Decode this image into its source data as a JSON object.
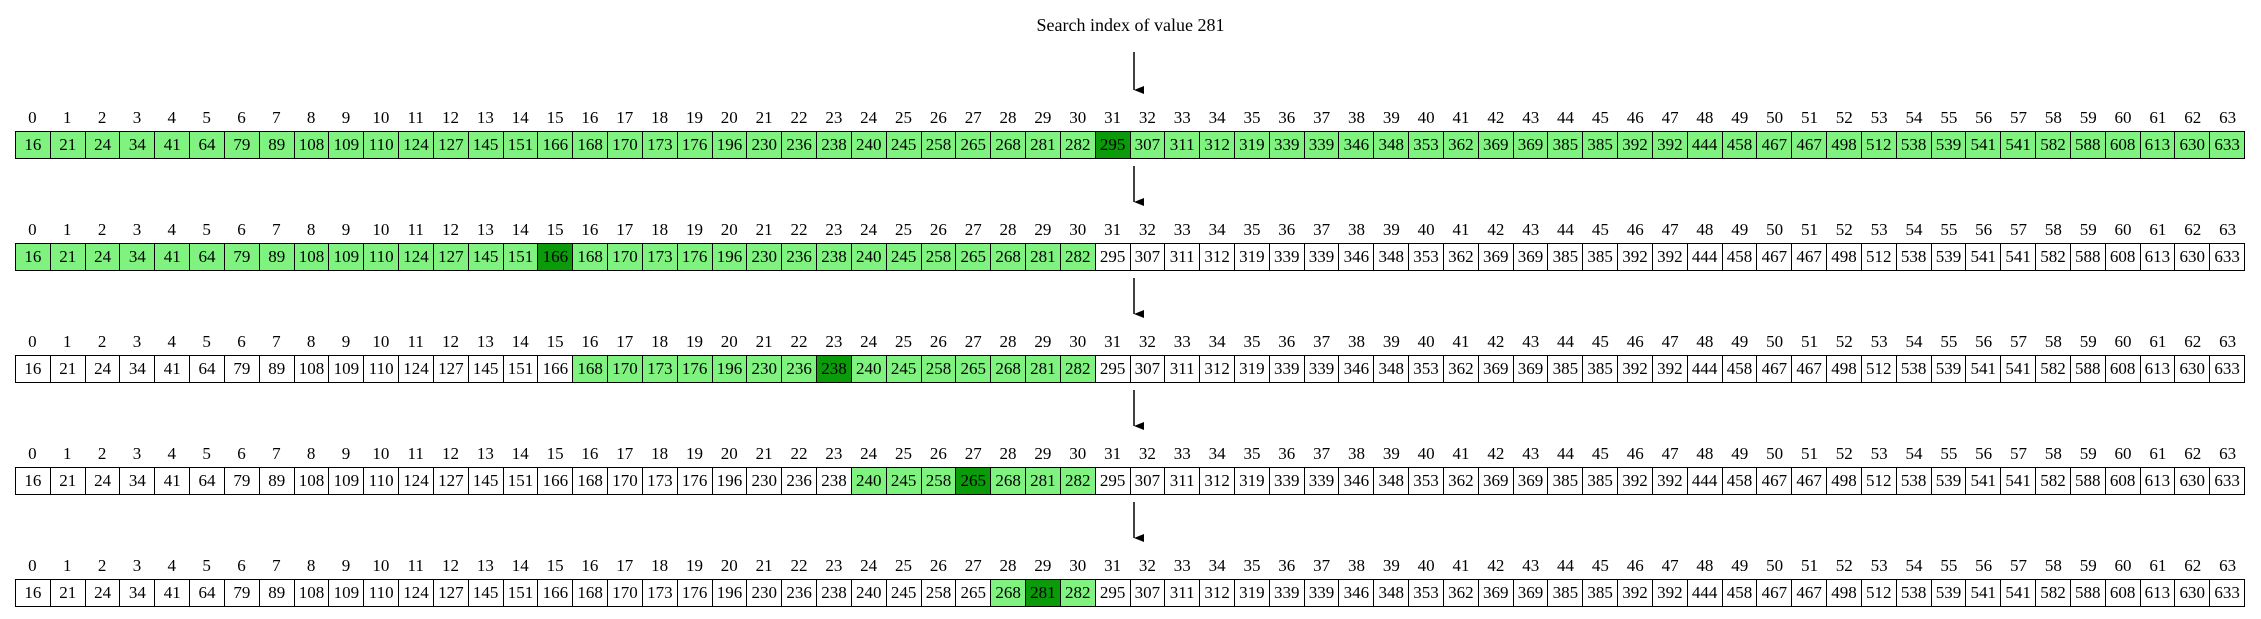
{
  "title": "Search index of value 281",
  "array": [
    16,
    21,
    24,
    34,
    41,
    64,
    79,
    89,
    108,
    109,
    110,
    124,
    127,
    145,
    151,
    166,
    168,
    170,
    173,
    176,
    196,
    230,
    236,
    238,
    240,
    245,
    258,
    265,
    268,
    281,
    282,
    295,
    307,
    311,
    312,
    319,
    339,
    339,
    346,
    348,
    353,
    362,
    369,
    369,
    385,
    385,
    392,
    392,
    444,
    458,
    467,
    467,
    498,
    512,
    538,
    539,
    541,
    541,
    582,
    588,
    608,
    613,
    630,
    633
  ],
  "colors": {
    "range": "#7ff27f",
    "probe": "#0a9a0a",
    "empty": "#ffffff"
  },
  "steps": [
    {
      "range": [
        0,
        63
      ],
      "probe": 31
    },
    {
      "range": [
        0,
        30
      ],
      "probe": 15
    },
    {
      "range": [
        16,
        30
      ],
      "probe": 23
    },
    {
      "range": [
        24,
        30
      ],
      "probe": 27
    },
    {
      "range": [
        28,
        30
      ],
      "probe": 29
    }
  ]
}
